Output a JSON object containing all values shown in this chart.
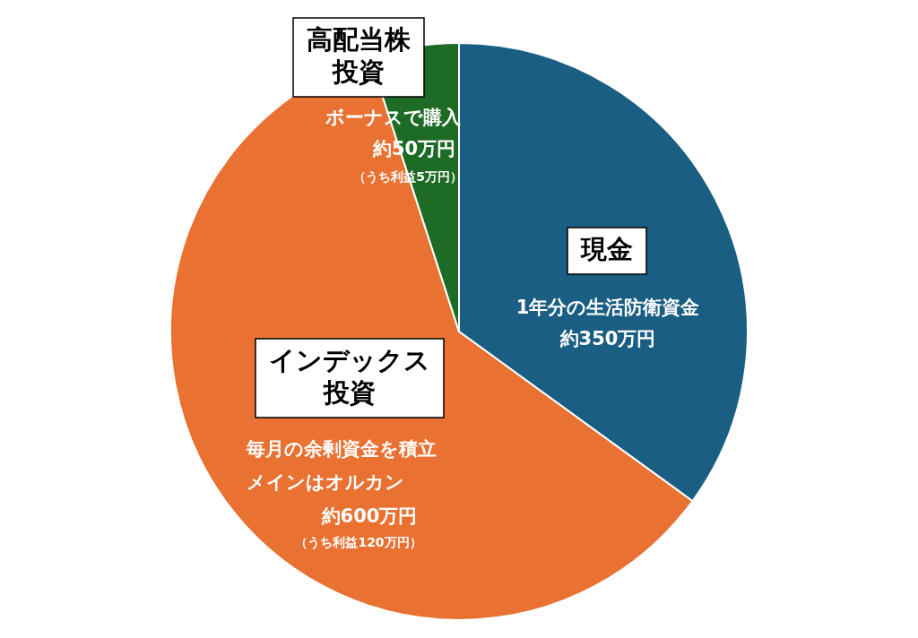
{
  "chart_data": {
    "type": "pie",
    "categories": [
      "現金",
      "インデックス投資",
      "高配当株投資"
    ],
    "values": [
      35,
      60,
      5
    ],
    "colors": [
      "#1b5e83",
      "#e97132",
      "#1e6b25"
    ],
    "annotations": [
      "1年分の生活防衛資金",
      "約350万円",
      "毎月の余剰資金を積立",
      "メインはオルカン",
      "約600万円",
      "（うち利益120万円）",
      "ボーナスで購入",
      "約50万円",
      "（うち利益5万円）"
    ]
  }
}
